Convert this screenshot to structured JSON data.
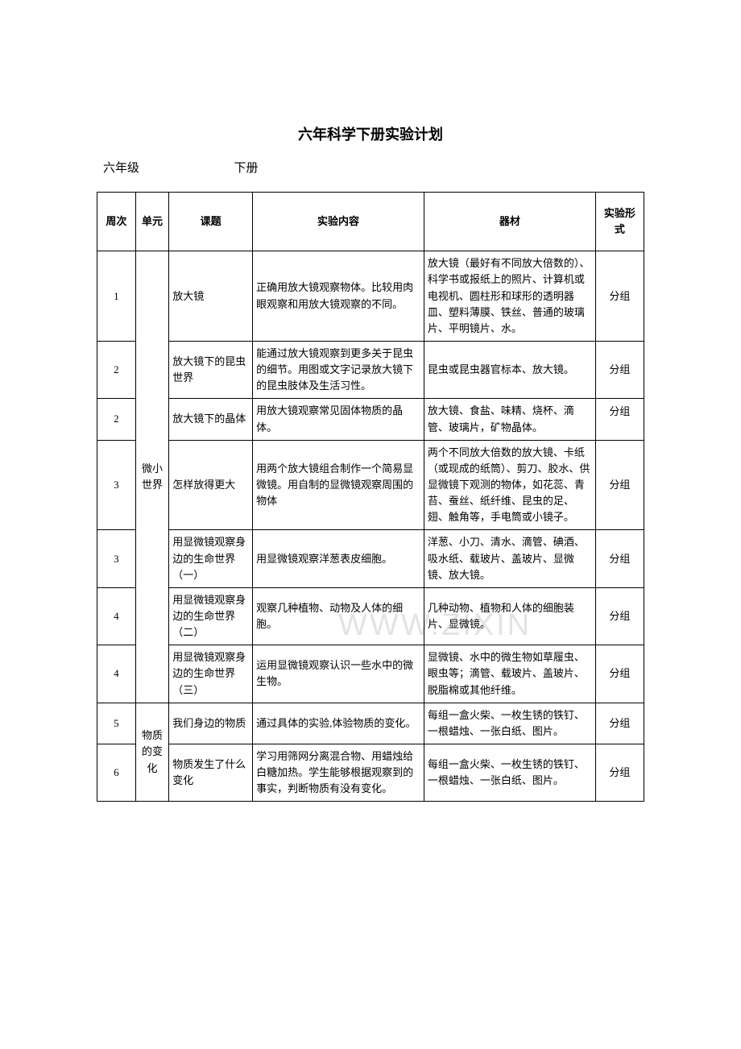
{
  "title": "六年科学下册实验计划",
  "subhead": {
    "grade": "六年级",
    "volume": "下册"
  },
  "watermark": "WWW.ZIXIN",
  "headers": {
    "week": "周次",
    "unit": "单元",
    "topic": "课题",
    "content": "实验内容",
    "material": "器材",
    "form": "实验形式"
  },
  "units": {
    "u1": "微小世界",
    "u2": "物质的变化"
  },
  "rows": [
    {
      "week": "1",
      "topic": "放大镜",
      "content": "正确用放大镜观察物体。比较用肉眼观察和用放大镜观察的不同。",
      "material": "放大镜（最好有不同放大倍数的）、科学书或报纸上的照片、计算机或电视机、圆柱形和球形的透明器皿、塑料薄膜、铁丝、普通的玻璃片、平明镜片、水。",
      "form": "分组"
    },
    {
      "week": "2",
      "topic": "放大镜下的昆虫世界",
      "content": "能通过放大镜观察到更多关于昆虫的细节。用图或文字记录放大镜下的昆虫肢体及生活习性。",
      "material": "昆虫或昆虫器官标本、放大镜。",
      "form": "分组"
    },
    {
      "week": "2",
      "topic": "放大镜下的晶体",
      "content": "用放大镜观察常见固体物质的晶体。",
      "material": "放大镜、食盐、味精、烧杯、滴管、玻璃片，矿物晶体。",
      "form": "分组"
    },
    {
      "week": "3",
      "topic": "怎样放得更大",
      "content": "用两个放大镜组合制作一个简易显微镜。用自制的显微镜观察周围的物体",
      "material": "两个不同放大倍数的放大镜、卡纸（或现成的纸筒）、剪刀、胶水、供显微镜下观测的物体，如花蕊、青苔、蚕丝、纸纤维、昆虫的足、翅、触角等，手电筒或小镜子。",
      "form": "分组"
    },
    {
      "week": "3",
      "topic": "用显微镜观察身边的生命世界（一）",
      "content": "用显微镜观察洋葱表皮细胞。",
      "material": "洋葱、小刀、清水、滴管、碘酒、吸水纸、载玻片、盖玻片、显微镜、放大镜。",
      "form": "分组"
    },
    {
      "week": "4",
      "topic": "用显微镜观察身边的生命世界（二）",
      "content": "观察几种植物、动物及人体的细胞。",
      "material": "几种动物、植物和人体的细胞装片、显微镜。",
      "form": "分组"
    },
    {
      "week": "4",
      "topic": "用显微镜观察身边的生命世界（三）",
      "content": "运用显微镜观察认识一些水中的微生物。",
      "material": "显微镜、水中的微生物如草履虫、眼虫等；滴管、载玻片、盖玻片、脱脂棉或其他纤维。",
      "form": "分组"
    },
    {
      "week": "5",
      "topic": "我们身边的物质",
      "content": "通过具体的实验,体验物质的变化。",
      "material": "每组一盒火柴、一枚生锈的铁钉、一根蜡烛、一张白纸、图片。",
      "form": "分组"
    },
    {
      "week": "6",
      "topic": "物质发生了什么变化",
      "content": "学习用筛网分离混合物、用蜡烛给白糖加热。学生能够根据观察到的事实，判断物质有没有变化。",
      "material": "每组一盒火柴、一枚生锈的铁钉、一根蜡烛、一张白纸、图片。",
      "form": "分组"
    }
  ]
}
